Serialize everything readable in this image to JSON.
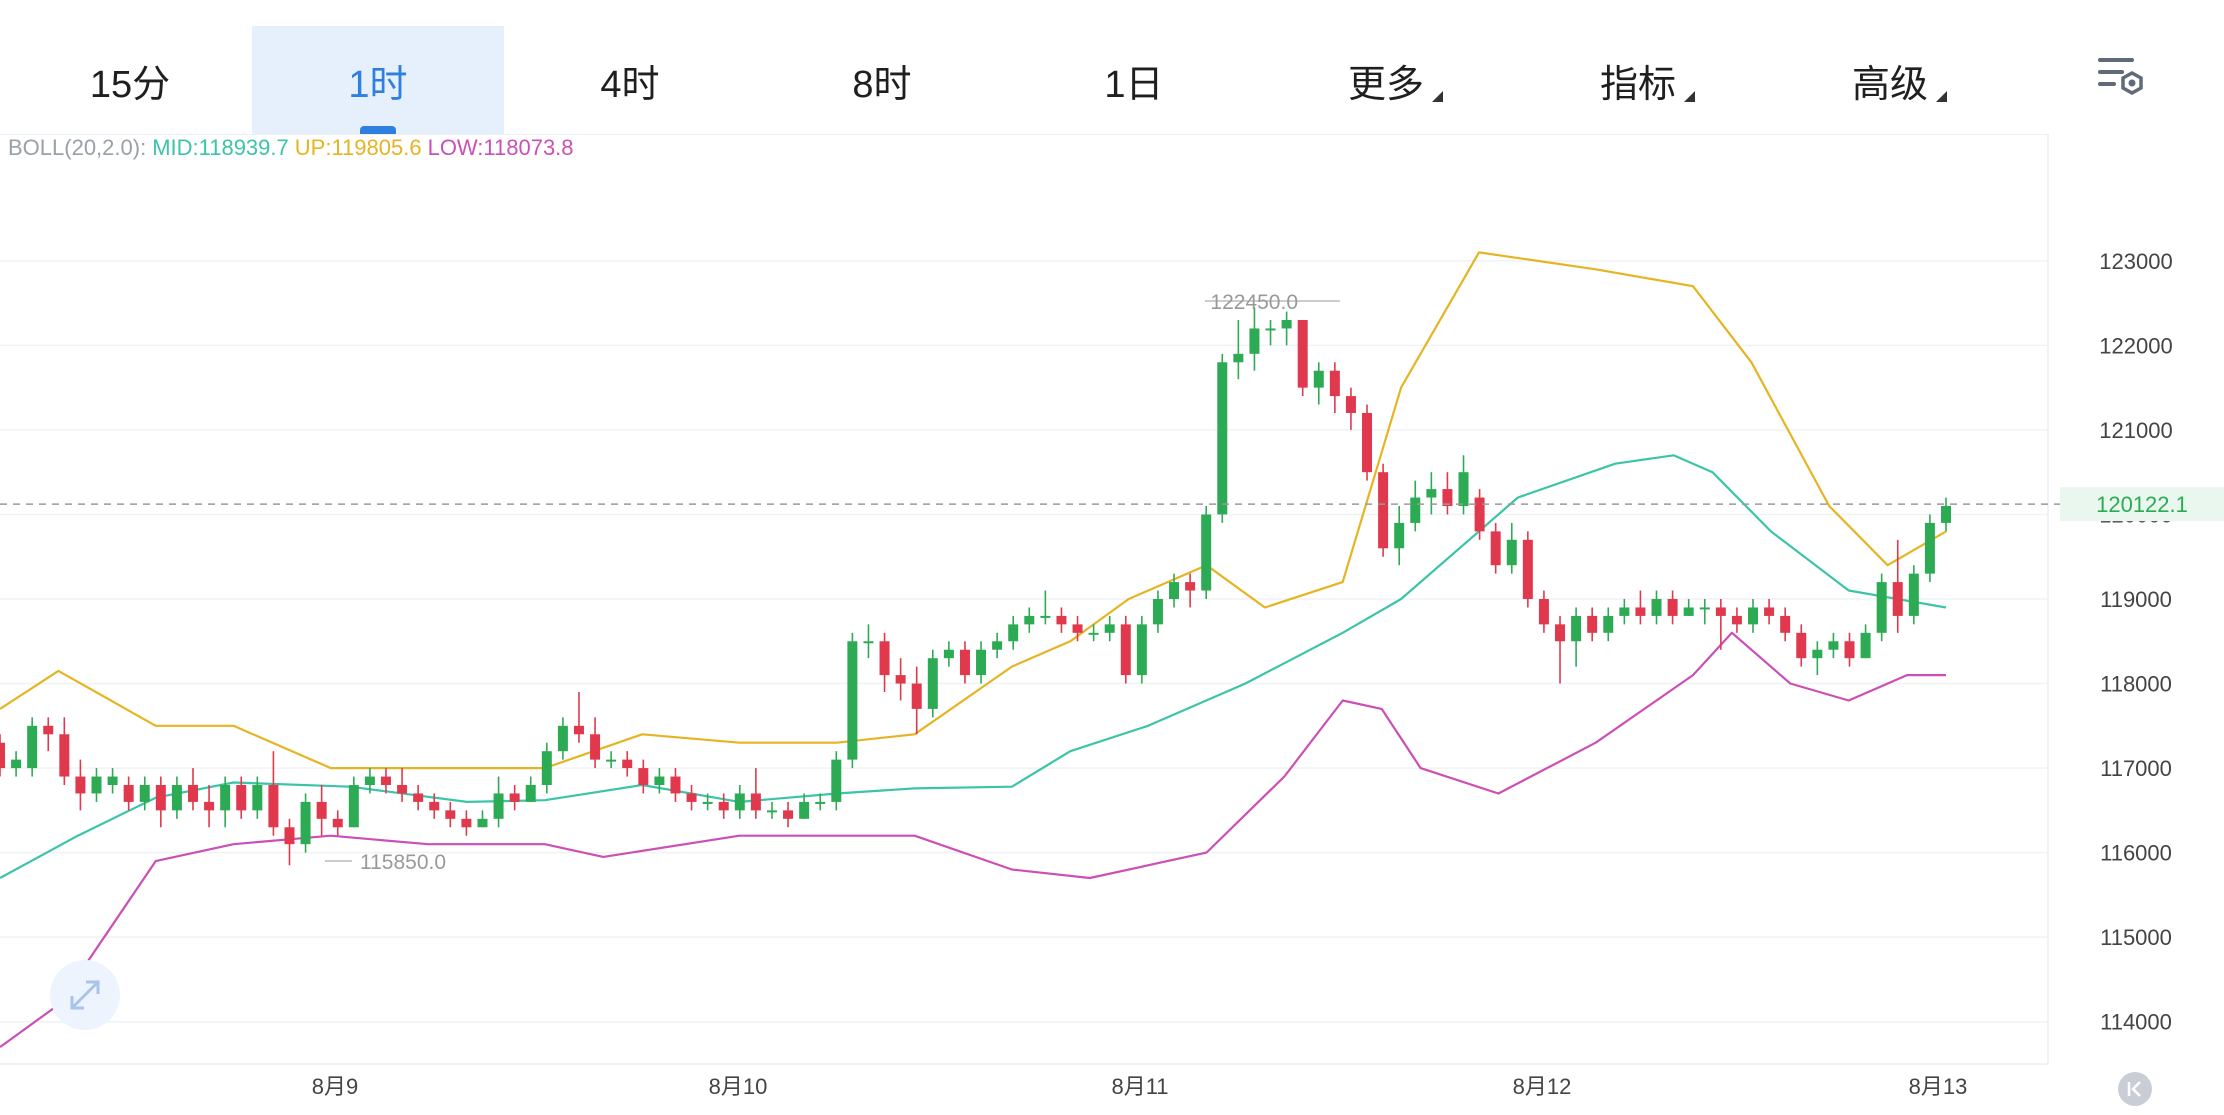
{
  "tabs": [
    {
      "label": "15分",
      "active": false,
      "dropdown": false
    },
    {
      "label": "1时",
      "active": true,
      "dropdown": false
    },
    {
      "label": "4时",
      "active": false,
      "dropdown": false
    },
    {
      "label": "8时",
      "active": false,
      "dropdown": false
    },
    {
      "label": "1日",
      "active": false,
      "dropdown": false
    },
    {
      "label": "更多",
      "active": false,
      "dropdown": true
    },
    {
      "label": "指标",
      "active": false,
      "dropdown": true
    },
    {
      "label": "高级",
      "active": false,
      "dropdown": true
    }
  ],
  "icons": {
    "settings": "chart-settings-icon",
    "expand": "expand-arrows-icon",
    "back": "scroll-to-latest-icon"
  },
  "indicator": {
    "name": "BOLL(20,2.0):",
    "mid": "MID:118939.7",
    "up": "UP:119805.6",
    "low": "LOW:118073.8"
  },
  "colors": {
    "up": "#2dab54",
    "down": "#e0394d",
    "mid": "#3cc4a8",
    "upper": "#e6b422",
    "lower": "#cc4fb5",
    "accent": "#2f7fe0"
  },
  "chart_data": {
    "type": "candlestick",
    "ylim": [
      113500,
      124500
    ],
    "y_ticks": [
      114000,
      115000,
      116000,
      117000,
      118000,
      119000,
      120000,
      121000,
      122000,
      123000
    ],
    "x_labels": [
      "8月9",
      "8月10",
      "8月11",
      "8月12",
      "8月13"
    ],
    "last_price": "120122.1",
    "annotations": {
      "high": "122450.0",
      "low": "115850.0"
    },
    "candles": [
      [
        117300,
        117000,
        117400,
        116900
      ],
      [
        117000,
        117100,
        117200,
        116900
      ],
      [
        117000,
        117500,
        117600,
        116900
      ],
      [
        117500,
        117400,
        117600,
        117200
      ],
      [
        117400,
        116900,
        117600,
        116800
      ],
      [
        116900,
        116700,
        117100,
        116500
      ],
      [
        116700,
        116900,
        117000,
        116600
      ],
      [
        116800,
        116900,
        117000,
        116700
      ],
      [
        116800,
        116600,
        116900,
        116500
      ],
      [
        116600,
        116800,
        116900,
        116500
      ],
      [
        116800,
        116500,
        116900,
        116300
      ],
      [
        116500,
        116800,
        116900,
        116400
      ],
      [
        116800,
        116600,
        117000,
        116500
      ],
      [
        116600,
        116500,
        116800,
        116300
      ],
      [
        116500,
        116800,
        116900,
        116300
      ],
      [
        116800,
        116500,
        116900,
        116400
      ],
      [
        116500,
        116800,
        116900,
        116400
      ],
      [
        116800,
        116300,
        117200,
        116200
      ],
      [
        116300,
        116100,
        116400,
        115850
      ],
      [
        116100,
        116600,
        116700,
        116000
      ],
      [
        116600,
        116400,
        116800,
        116200
      ],
      [
        116400,
        116300,
        116500,
        116200
      ],
      [
        116300,
        116800,
        116900,
        116300
      ],
      [
        116800,
        116900,
        117000,
        116700
      ],
      [
        116900,
        116800,
        117000,
        116700
      ],
      [
        116800,
        116700,
        117000,
        116600
      ],
      [
        116700,
        116600,
        116800,
        116500
      ],
      [
        116600,
        116500,
        116700,
        116400
      ],
      [
        116500,
        116400,
        116600,
        116300
      ],
      [
        116400,
        116300,
        116500,
        116200
      ],
      [
        116300,
        116400,
        116500,
        116300
      ],
      [
        116400,
        116700,
        116900,
        116300
      ],
      [
        116700,
        116600,
        116800,
        116500
      ],
      [
        116600,
        116800,
        116900,
        116600
      ],
      [
        116800,
        117200,
        117300,
        116700
      ],
      [
        117200,
        117500,
        117600,
        117100
      ],
      [
        117500,
        117400,
        117900,
        117300
      ],
      [
        117400,
        117100,
        117600,
        117000
      ],
      [
        117100,
        117100,
        117200,
        117000
      ],
      [
        117100,
        117000,
        117200,
        116900
      ],
      [
        117000,
        116800,
        117100,
        116700
      ],
      [
        116800,
        116900,
        117000,
        116700
      ],
      [
        116900,
        116700,
        117000,
        116600
      ],
      [
        116700,
        116600,
        116800,
        116500
      ],
      [
        116600,
        116600,
        116700,
        116500
      ],
      [
        116600,
        116500,
        116700,
        116400
      ],
      [
        116500,
        116700,
        116800,
        116400
      ],
      [
        116700,
        116500,
        117000,
        116400
      ],
      [
        116500,
        116500,
        116600,
        116400
      ],
      [
        116500,
        116400,
        116600,
        116300
      ],
      [
        116400,
        116600,
        116700,
        116400
      ],
      [
        116600,
        116600,
        116700,
        116500
      ],
      [
        116600,
        117100,
        117200,
        116500
      ],
      [
        117100,
        118500,
        118600,
        117000
      ],
      [
        118500,
        118500,
        118700,
        118300
      ],
      [
        118500,
        118100,
        118600,
        117900
      ],
      [
        118100,
        118000,
        118300,
        117800
      ],
      [
        118000,
        117700,
        118200,
        117400
      ],
      [
        117700,
        118300,
        118400,
        117600
      ],
      [
        118300,
        118400,
        118500,
        118200
      ],
      [
        118400,
        118100,
        118500,
        118000
      ],
      [
        118100,
        118400,
        118500,
        118000
      ],
      [
        118400,
        118500,
        118600,
        118300
      ],
      [
        118500,
        118700,
        118800,
        118400
      ],
      [
        118700,
        118800,
        118900,
        118600
      ],
      [
        118800,
        118800,
        119100,
        118700
      ],
      [
        118800,
        118700,
        118900,
        118600
      ],
      [
        118700,
        118600,
        118800,
        118500
      ],
      [
        118600,
        118600,
        118700,
        118500
      ],
      [
        118600,
        118700,
        118800,
        118500
      ],
      [
        118700,
        118100,
        118800,
        118000
      ],
      [
        118100,
        118700,
        118800,
        118000
      ],
      [
        118700,
        119000,
        119100,
        118600
      ],
      [
        119000,
        119200,
        119300,
        118900
      ],
      [
        119200,
        119100,
        119300,
        118900
      ],
      [
        119100,
        120000,
        120100,
        119000
      ],
      [
        120000,
        121800,
        121900,
        119900
      ],
      [
        121800,
        121900,
        122300,
        121600
      ],
      [
        121900,
        122200,
        122450,
        121700
      ],
      [
        122200,
        122200,
        122300,
        122000
      ],
      [
        122200,
        122300,
        122400,
        122000
      ],
      [
        122300,
        121500,
        122300,
        121400
      ],
      [
        121500,
        121700,
        121800,
        121300
      ],
      [
        121700,
        121400,
        121800,
        121200
      ],
      [
        121400,
        121200,
        121500,
        121000
      ],
      [
        121200,
        120500,
        121300,
        120400
      ],
      [
        120500,
        119600,
        120600,
        119500
      ],
      [
        119600,
        119900,
        120100,
        119400
      ],
      [
        119900,
        120200,
        120400,
        119800
      ],
      [
        120200,
        120300,
        120500,
        120000
      ],
      [
        120300,
        120100,
        120500,
        120000
      ],
      [
        120100,
        120500,
        120700,
        120000
      ],
      [
        120200,
        119800,
        120300,
        119700
      ],
      [
        119800,
        119400,
        119900,
        119300
      ],
      [
        119400,
        119700,
        119900,
        119300
      ],
      [
        119700,
        119000,
        119800,
        118900
      ],
      [
        119000,
        118700,
        119100,
        118600
      ],
      [
        118700,
        118500,
        118800,
        118000
      ],
      [
        118500,
        118800,
        118900,
        118200
      ],
      [
        118800,
        118600,
        118900,
        118500
      ],
      [
        118600,
        118800,
        118900,
        118500
      ],
      [
        118800,
        118900,
        119000,
        118700
      ],
      [
        118900,
        118800,
        119100,
        118700
      ],
      [
        118800,
        119000,
        119100,
        118700
      ],
      [
        119000,
        118800,
        119100,
        118700
      ],
      [
        118800,
        118900,
        119000,
        118800
      ],
      [
        118900,
        118900,
        119000,
        118700
      ],
      [
        118900,
        118800,
        119000,
        118400
      ],
      [
        118800,
        118700,
        118900,
        118600
      ],
      [
        118700,
        118900,
        119000,
        118600
      ],
      [
        118900,
        118800,
        119000,
        118700
      ],
      [
        118800,
        118600,
        118900,
        118500
      ],
      [
        118600,
        118300,
        118700,
        118200
      ],
      [
        118300,
        118400,
        118500,
        118100
      ],
      [
        118400,
        118500,
        118600,
        118300
      ],
      [
        118500,
        118300,
        118600,
        118200
      ],
      [
        118300,
        118600,
        118700,
        118300
      ],
      [
        118600,
        119200,
        119300,
        118500
      ],
      [
        119200,
        118800,
        119700,
        118600
      ],
      [
        118800,
        119300,
        119400,
        118700
      ],
      [
        119300,
        119900,
        120000,
        119200
      ],
      [
        119900,
        120100,
        120200,
        119800
      ]
    ],
    "boll_mid": [
      [
        0,
        115700
      ],
      [
        0.04,
        116200
      ],
      [
        0.08,
        116650
      ],
      [
        0.12,
        116830
      ],
      [
        0.18,
        116780
      ],
      [
        0.24,
        116600
      ],
      [
        0.28,
        116620
      ],
      [
        0.33,
        116800
      ],
      [
        0.38,
        116600
      ],
      [
        0.43,
        116700
      ],
      [
        0.47,
        116760
      ],
      [
        0.52,
        116780
      ],
      [
        0.55,
        117200
      ],
      [
        0.59,
        117500
      ],
      [
        0.64,
        118000
      ],
      [
        0.69,
        118600
      ],
      [
        0.72,
        119000
      ],
      [
        0.78,
        120200
      ],
      [
        0.83,
        120600
      ],
      [
        0.86,
        120700
      ],
      [
        0.88,
        120500
      ],
      [
        0.91,
        119800
      ],
      [
        0.95,
        119100
      ],
      [
        1.0,
        118900
      ]
    ],
    "boll_upper": [
      [
        0,
        117700
      ],
      [
        0.03,
        118150
      ],
      [
        0.08,
        117500
      ],
      [
        0.12,
        117500
      ],
      [
        0.17,
        117000
      ],
      [
        0.22,
        117000
      ],
      [
        0.28,
        117000
      ],
      [
        0.33,
        117400
      ],
      [
        0.38,
        117300
      ],
      [
        0.43,
        117300
      ],
      [
        0.47,
        117400
      ],
      [
        0.52,
        118200
      ],
      [
        0.55,
        118500
      ],
      [
        0.58,
        119000
      ],
      [
        0.62,
        119400
      ],
      [
        0.65,
        118900
      ],
      [
        0.69,
        119200
      ],
      [
        0.72,
        121500
      ],
      [
        0.76,
        123100
      ],
      [
        0.82,
        122900
      ],
      [
        0.87,
        122700
      ],
      [
        0.9,
        121800
      ],
      [
        0.94,
        120100
      ],
      [
        0.97,
        119400
      ],
      [
        1.0,
        119800
      ]
    ],
    "boll_lower": [
      [
        0,
        113700
      ],
      [
        0.03,
        114200
      ],
      [
        0.08,
        115900
      ],
      [
        0.12,
        116100
      ],
      [
        0.17,
        116200
      ],
      [
        0.22,
        116100
      ],
      [
        0.28,
        116100
      ],
      [
        0.31,
        115950
      ],
      [
        0.38,
        116200
      ],
      [
        0.43,
        116200
      ],
      [
        0.47,
        116200
      ],
      [
        0.52,
        115800
      ],
      [
        0.56,
        115700
      ],
      [
        0.62,
        116000
      ],
      [
        0.66,
        116900
      ],
      [
        0.69,
        117800
      ],
      [
        0.71,
        117700
      ],
      [
        0.73,
        117000
      ],
      [
        0.77,
        116700
      ],
      [
        0.82,
        117300
      ],
      [
        0.87,
        118100
      ],
      [
        0.89,
        118600
      ],
      [
        0.92,
        118000
      ],
      [
        0.95,
        117800
      ],
      [
        0.98,
        118100
      ],
      [
        1.0,
        118100
      ]
    ]
  }
}
